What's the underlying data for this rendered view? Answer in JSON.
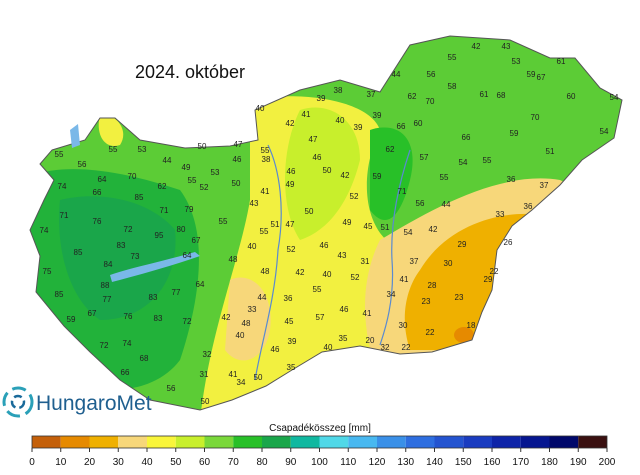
{
  "header": {
    "title": "2024. október",
    "logo": "HungaroMet"
  },
  "legend": {
    "title": "Csapadékösszeg [mm]",
    "ticks": [
      0,
      10,
      20,
      30,
      40,
      50,
      60,
      70,
      80,
      90,
      100,
      110,
      120,
      130,
      140,
      150,
      160,
      170,
      180,
      190,
      200
    ],
    "colors": [
      "#c4600a",
      "#e68a00",
      "#efb000",
      "#f7d77a",
      "#f9f53a",
      "#c8ef2c",
      "#7ad83a",
      "#28c028",
      "#1aa64a",
      "#10b8a0",
      "#50d8e8",
      "#48b8f0",
      "#3a90e8",
      "#2e6ee0",
      "#2454d0",
      "#1a3cc0",
      "#0e24a8",
      "#061690",
      "#00086a",
      "#3a1010"
    ]
  },
  "stations": [
    42,
    43,
    55,
    53,
    61,
    44,
    56,
    59,
    67,
    58,
    62,
    70,
    61,
    68,
    60,
    54,
    70,
    54,
    59,
    66,
    51,
    39,
    38,
    37,
    40,
    41,
    42,
    39,
    40,
    39,
    66,
    60,
    62,
    55,
    56,
    55,
    53,
    44,
    50,
    47,
    46,
    55,
    64,
    49,
    53,
    74,
    66,
    70,
    62,
    55,
    52,
    50,
    71,
    76,
    85,
    71,
    79,
    55,
    43,
    41,
    74,
    85,
    83,
    95,
    80,
    67,
    72,
    75,
    84,
    73,
    64,
    48,
    40,
    85,
    88,
    77,
    83,
    77,
    64,
    59,
    67,
    76,
    83,
    72,
    72,
    74,
    68,
    66,
    32,
    31,
    41,
    56,
    50,
    34,
    42,
    48,
    40,
    44,
    48,
    33,
    46,
    50,
    35,
    39,
    45,
    36,
    42,
    40,
    46,
    52,
    43,
    52,
    55,
    57,
    46,
    41,
    40,
    35,
    34,
    41,
    37,
    31,
    45,
    51,
    54,
    42,
    44,
    56,
    55,
    57,
    59,
    71,
    47,
    46,
    50,
    49,
    38,
    51,
    55,
    47,
    50,
    49,
    52,
    42,
    46,
    30,
    22,
    29,
    28,
    23,
    23,
    26,
    33,
    36,
    37,
    36,
    55,
    54,
    18,
    22,
    30,
    32,
    22,
    20,
    29
  ]
}
